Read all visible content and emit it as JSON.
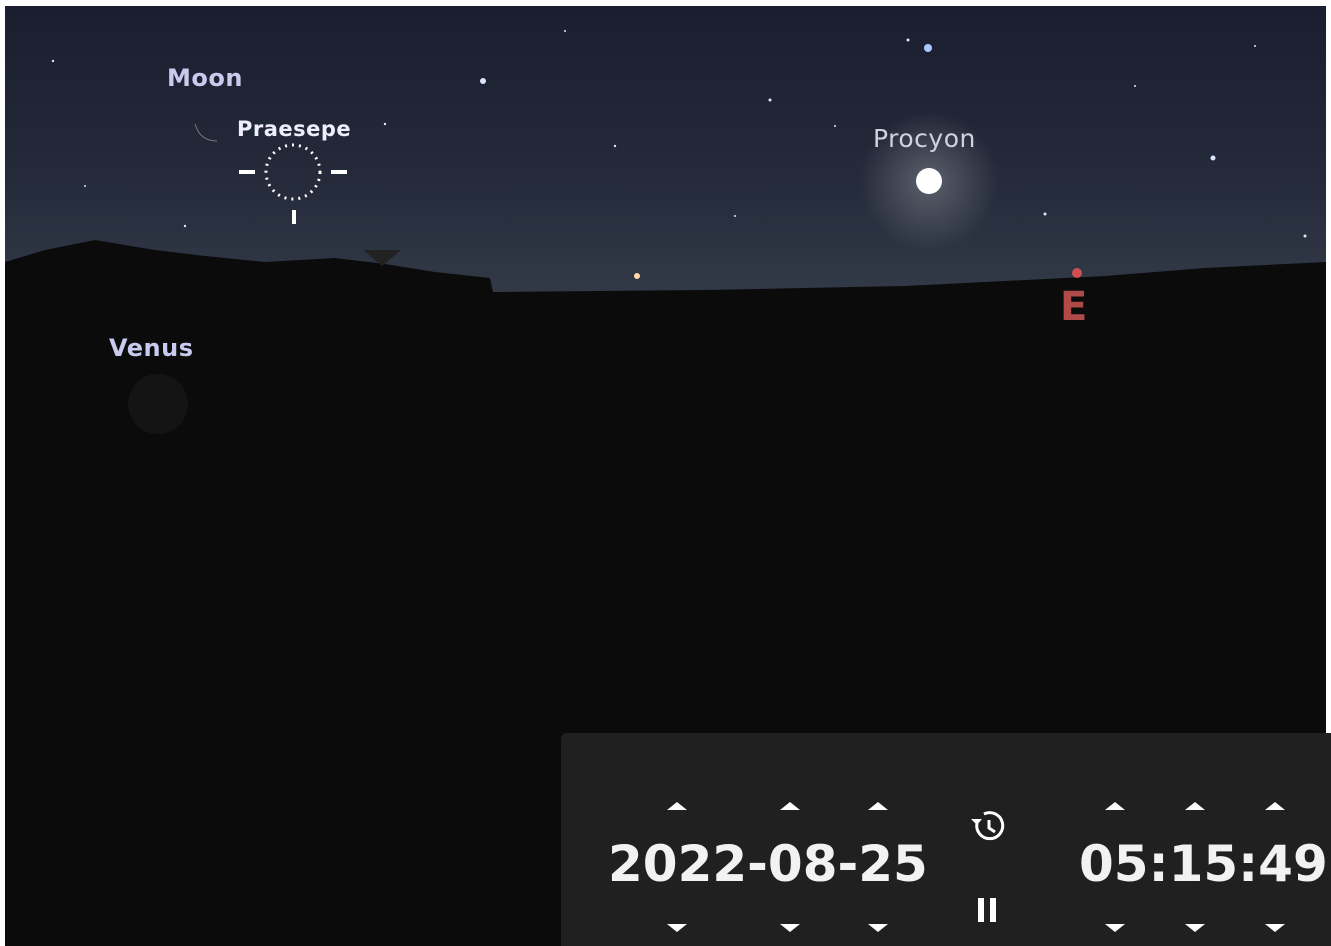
{
  "sky_labels": {
    "moon": "Moon",
    "praesepe": "Praesepe",
    "procyon": "Procyon",
    "venus": "Venus",
    "compass_east": "E"
  },
  "time_panel": {
    "date": "2022-08-25",
    "time": "05:15:49"
  }
}
